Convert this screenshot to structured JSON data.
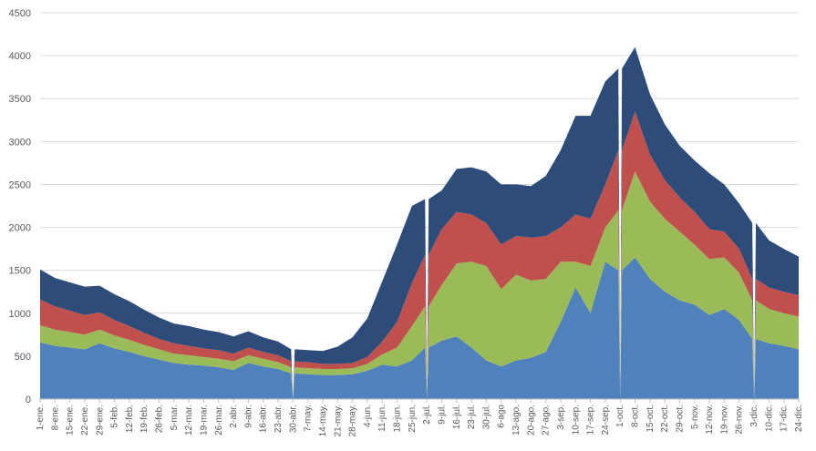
{
  "chart_data": {
    "type": "area",
    "stacked": true,
    "title": "",
    "xlabel": "",
    "ylabel": "",
    "ylim": [
      0,
      4500
    ],
    "yticks": [
      0,
      500,
      1000,
      1500,
      2000,
      2500,
      3000,
      3500,
      4000,
      4500
    ],
    "grid": true,
    "legend": "none",
    "x": [
      "1-ene.",
      "8-ene.",
      "15-ene.",
      "22-ene.",
      "29-ene.",
      "5-feb.",
      "12-feb.",
      "19-feb.",
      "26-feb.",
      "5-mar.",
      "12-mar.",
      "19-mar.",
      "26-mar.",
      "2-abr.",
      "9-abr.",
      "16-abr.",
      "23-abr.",
      "30-abr.",
      "7-may.",
      "14-may.",
      "21-may.",
      "28-may.",
      "4-jun.",
      "11-jun.",
      "18-jun.",
      "25-jun.",
      "2-jul.",
      "9-jul.",
      "16-jul.",
      "23-jul.",
      "30-jul.",
      "6-ago",
      "13-ago.",
      "20-ago.",
      "27-ago.",
      "3-sep.",
      "10-sep.",
      "17-sep.",
      "24-sep.",
      "1-oct.",
      "8-oct.",
      "15-oct.",
      "22-oct.",
      "29-oct.",
      "5-nov.",
      "12-nov.",
      "19-nov.",
      "26-nov.",
      "3-dic.",
      "10-dic.",
      "17-dic.",
      "24-dic."
    ],
    "series": [
      {
        "color": "#4f81bd",
        "values": [
          660,
          620,
          600,
          580,
          650,
          590,
          550,
          500,
          460,
          420,
          400,
          390,
          370,
          340,
          420,
          380,
          350,
          300,
          290,
          280,
          280,
          290,
          330,
          400,
          380,
          450,
          600,
          680,
          730,
          600,
          450,
          380,
          450,
          480,
          550,
          900,
          1300,
          1000,
          1600,
          1500,
          1650,
          1400,
          1250,
          1150,
          1100,
          980,
          1050,
          920,
          700,
          650,
          620,
          580
        ]
      },
      {
        "color": "#9bbb59",
        "values": [
          200,
          190,
          180,
          170,
          160,
          150,
          140,
          130,
          120,
          110,
          110,
          100,
          100,
          100,
          90,
          90,
          80,
          70,
          70,
          70,
          70,
          70,
          80,
          120,
          220,
          400,
          480,
          650,
          850,
          1000,
          1100,
          900,
          1000,
          900,
          850,
          700,
          300,
          550,
          400,
          700,
          1000,
          900,
          850,
          800,
          700,
          650,
          600,
          550,
          450,
          400,
          380,
          380
        ]
      },
      {
        "color": "#c0504d",
        "values": [
          300,
          270,
          250,
          230,
          200,
          180,
          160,
          140,
          120,
          120,
          110,
          100,
          100,
          90,
          90,
          80,
          80,
          70,
          70,
          60,
          60,
          60,
          80,
          150,
          300,
          500,
          600,
          650,
          600,
          550,
          500,
          520,
          450,
          500,
          500,
          400,
          550,
          550,
          500,
          700,
          700,
          550,
          450,
          400,
          380,
          350,
          300,
          280,
          250,
          250,
          250,
          250
        ]
      },
      {
        "color": "#2e4c7a",
        "values": [
          350,
          330,
          330,
          330,
          310,
          300,
          290,
          270,
          250,
          230,
          230,
          220,
          210,
          200,
          190,
          170,
          160,
          140,
          140,
          150,
          200,
          300,
          450,
          700,
          900,
          900,
          650,
          450,
          500,
          550,
          600,
          700,
          600,
          600,
          700,
          900,
          1150,
          1200,
          1200,
          950,
          750,
          700,
          650,
          600,
          600,
          650,
          550,
          530,
          650,
          550,
          500,
          450
        ]
      }
    ],
    "dips": [
      17,
      26,
      39,
      48
    ]
  }
}
